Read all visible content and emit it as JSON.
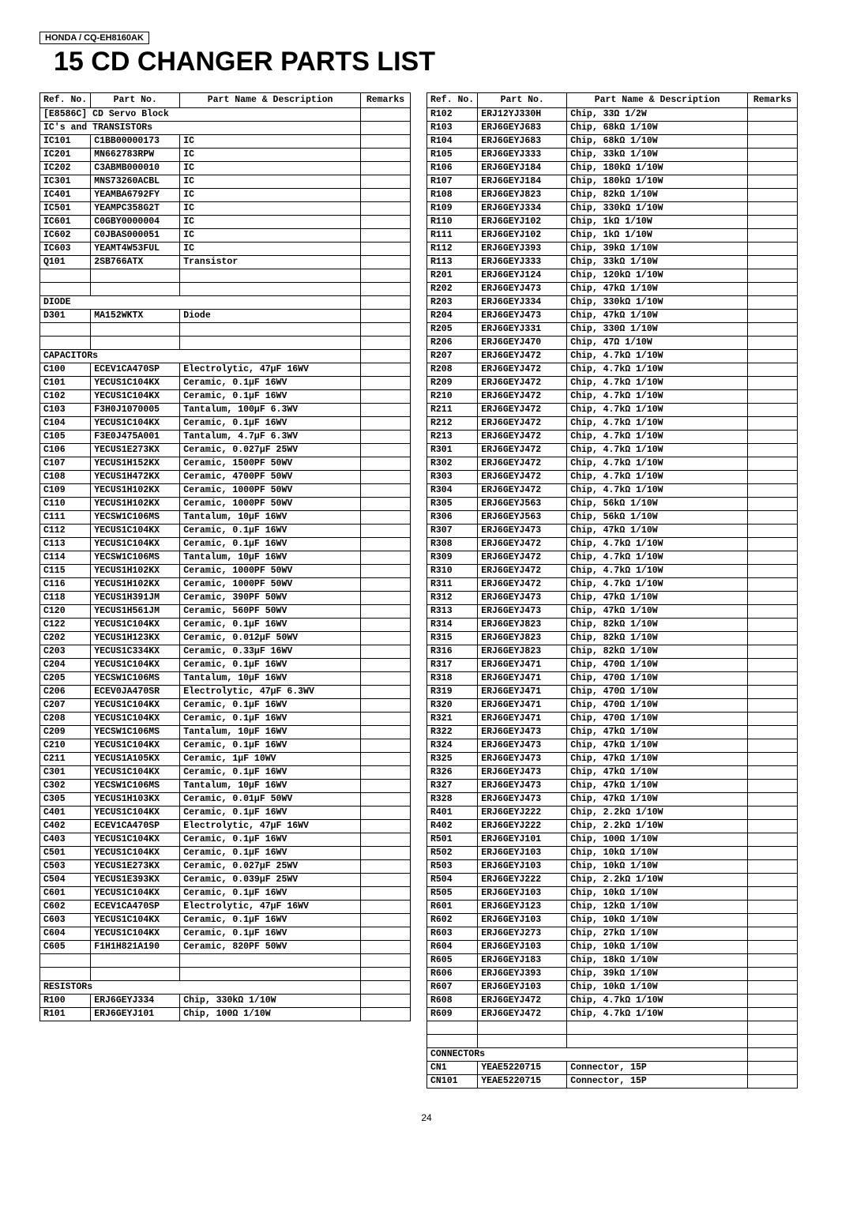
{
  "model": "HONDA / CQ-EH8160AK",
  "title": "15 CD CHANGER PARTS LIST",
  "page_number": "24",
  "headers": {
    "ref": "Ref. No.",
    "pn": "Part No.",
    "desc": "Part Name & Description",
    "rem": "Remarks"
  },
  "left_rows": [
    {
      "type": "section",
      "span": 3,
      "text": "[E8586C] CD Servo Block"
    },
    {
      "type": "section",
      "span": 3,
      "text": "IC's and TRANSISTORs"
    },
    {
      "ref": "IC101",
      "pn": "C1BB00000173",
      "desc": "IC"
    },
    {
      "ref": "IC201",
      "pn": "MN662783RPW",
      "desc": "IC"
    },
    {
      "ref": "IC202",
      "pn": "C3ABMB000010",
      "desc": "IC"
    },
    {
      "ref": "IC301",
      "pn": "MNS73260ACBL",
      "desc": "IC"
    },
    {
      "ref": "IC401",
      "pn": "YEAMBA6792FY",
      "desc": "IC"
    },
    {
      "ref": "IC501",
      "pn": "YEAMPC358G2T",
      "desc": "IC"
    },
    {
      "ref": "IC601",
      "pn": "C0GBY0000004",
      "desc": "IC"
    },
    {
      "ref": "IC602",
      "pn": "C0JBAS000051",
      "desc": "IC"
    },
    {
      "ref": "IC603",
      "pn": "YEAMT4W53FUL",
      "desc": "IC"
    },
    {
      "ref": "Q101",
      "pn": "2SB766ATX",
      "desc": "Transistor"
    },
    {
      "type": "blank"
    },
    {
      "type": "blank"
    },
    {
      "type": "section",
      "span": 3,
      "text": "DIODE"
    },
    {
      "ref": "D301",
      "pn": "MA152WKTX",
      "desc": "Diode"
    },
    {
      "type": "blank"
    },
    {
      "type": "blank"
    },
    {
      "type": "section",
      "span": 3,
      "text": "CAPACITORs"
    },
    {
      "ref": "C100",
      "pn": "ECEV1CA470SP",
      "desc": "Electrolytic, 47µF 16WV"
    },
    {
      "ref": "C101",
      "pn": "YECUS1C104KX",
      "desc": "Ceramic, 0.1µF 16WV"
    },
    {
      "ref": "C102",
      "pn": "YECUS1C104KX",
      "desc": "Ceramic, 0.1µF 16WV"
    },
    {
      "ref": "C103",
      "pn": "F3H0J1070005",
      "desc": "Tantalum, 100µF 6.3WV"
    },
    {
      "ref": "C104",
      "pn": "YECUS1C104KX",
      "desc": "Ceramic, 0.1µF 16WV"
    },
    {
      "ref": "C105",
      "pn": "F3E0J475A001",
      "desc": "Tantalum, 4.7µF 6.3WV"
    },
    {
      "ref": "C106",
      "pn": "YECUS1E273KX",
      "desc": "Ceramic, 0.027µF 25WV"
    },
    {
      "ref": "C107",
      "pn": "YECUS1H152KX",
      "desc": "Ceramic, 1500PF 50WV"
    },
    {
      "ref": "C108",
      "pn": "YECUS1H472KX",
      "desc": "Ceramic, 4700PF 50WV"
    },
    {
      "ref": "C109",
      "pn": "YECUS1H102KX",
      "desc": "Ceramic, 1000PF 50WV"
    },
    {
      "ref": "C110",
      "pn": "YECUS1H102KX",
      "desc": "Ceramic, 1000PF 50WV"
    },
    {
      "ref": "C111",
      "pn": "YECSW1C106MS",
      "desc": "Tantalum, 10µF 16WV"
    },
    {
      "ref": "C112",
      "pn": "YECUS1C104KX",
      "desc": "Ceramic, 0.1µF 16WV"
    },
    {
      "ref": "C113",
      "pn": "YECUS1C104KX",
      "desc": "Ceramic, 0.1µF 16WV"
    },
    {
      "ref": "C114",
      "pn": "YECSW1C106MS",
      "desc": "Tantalum, 10µF 16WV"
    },
    {
      "ref": "C115",
      "pn": "YECUS1H102KX",
      "desc": "Ceramic, 1000PF 50WV"
    },
    {
      "ref": "C116",
      "pn": "YECUS1H102KX",
      "desc": "Ceramic, 1000PF 50WV"
    },
    {
      "ref": "C118",
      "pn": "YECUS1H391JM",
      "desc": "Ceramic, 390PF 50WV"
    },
    {
      "ref": "C120",
      "pn": "YECUS1H561JM",
      "desc": "Ceramic, 560PF 50WV"
    },
    {
      "ref": "C122",
      "pn": "YECUS1C104KX",
      "desc": "Ceramic, 0.1µF 16WV"
    },
    {
      "ref": "C202",
      "pn": "YECUS1H123KX",
      "desc": "Ceramic, 0.012µF 50WV"
    },
    {
      "ref": "C203",
      "pn": "YECUS1C334KX",
      "desc": "Ceramic, 0.33µF 16WV"
    },
    {
      "ref": "C204",
      "pn": "YECUS1C104KX",
      "desc": "Ceramic, 0.1µF 16WV"
    },
    {
      "ref": "C205",
      "pn": "YECSW1C106MS",
      "desc": "Tantalum, 10µF 16WV"
    },
    {
      "ref": "C206",
      "pn": "ECEV0JA470SR",
      "desc": "Electrolytic, 47µF 6.3WV"
    },
    {
      "ref": "C207",
      "pn": "YECUS1C104KX",
      "desc": "Ceramic, 0.1µF 16WV"
    },
    {
      "ref": "C208",
      "pn": "YECUS1C104KX",
      "desc": "Ceramic, 0.1µF 16WV"
    },
    {
      "ref": "C209",
      "pn": "YECSW1C106MS",
      "desc": "Tantalum, 10µF 16WV"
    },
    {
      "ref": "C210",
      "pn": "YECUS1C104KX",
      "desc": "Ceramic, 0.1µF 16WV"
    },
    {
      "ref": "C211",
      "pn": "YECUS1A105KX",
      "desc": "Ceramic, 1µF 10WV"
    },
    {
      "ref": "C301",
      "pn": "YECUS1C104KX",
      "desc": "Ceramic, 0.1µF 16WV"
    },
    {
      "ref": "C302",
      "pn": "YECSW1C106MS",
      "desc": "Tantalum, 10µF 16WV"
    },
    {
      "ref": "C305",
      "pn": "YECUS1H103KX",
      "desc": "Ceramic, 0.01µF 50WV"
    },
    {
      "ref": "C401",
      "pn": "YECUS1C104KX",
      "desc": "Ceramic, 0.1µF 16WV"
    },
    {
      "ref": "C402",
      "pn": "ECEV1CA470SP",
      "desc": "Electrolytic, 47µF 16WV"
    },
    {
      "ref": "C403",
      "pn": "YECUS1C104KX",
      "desc": "Ceramic, 0.1µF 16WV"
    },
    {
      "ref": "C501",
      "pn": "YECUS1C104KX",
      "desc": "Ceramic, 0.1µF 16WV"
    },
    {
      "ref": "C503",
      "pn": "YECUS1E273KX",
      "desc": "Ceramic, 0.027µF 25WV"
    },
    {
      "ref": "C504",
      "pn": "YECUS1E393KX",
      "desc": "Ceramic, 0.039µF 25WV"
    },
    {
      "ref": "C601",
      "pn": "YECUS1C104KX",
      "desc": "Ceramic, 0.1µF 16WV"
    },
    {
      "ref": "C602",
      "pn": "ECEV1CA470SP",
      "desc": "Electrolytic, 47µF 16WV"
    },
    {
      "ref": "C603",
      "pn": "YECUS1C104KX",
      "desc": "Ceramic, 0.1µF 16WV"
    },
    {
      "ref": "C604",
      "pn": "YECUS1C104KX",
      "desc": "Ceramic, 0.1µF 16WV"
    },
    {
      "ref": "C605",
      "pn": "F1H1H821A190",
      "desc": "Ceramic, 820PF 50WV"
    },
    {
      "type": "blank"
    },
    {
      "type": "blank"
    },
    {
      "type": "section",
      "span": 3,
      "text": "RESISTORs"
    },
    {
      "ref": "R100",
      "pn": "ERJ6GEYJ334",
      "desc": "Chip, 330kΩ 1/10W"
    },
    {
      "ref": "R101",
      "pn": "ERJ6GEYJ101",
      "desc": "Chip, 100Ω 1/10W"
    }
  ],
  "right_rows": [
    {
      "ref": "R102",
      "pn": "ERJ12YJ330H",
      "desc": "Chip, 33Ω 1/2W"
    },
    {
      "ref": "R103",
      "pn": "ERJ6GEYJ683",
      "desc": "Chip, 68kΩ 1/10W"
    },
    {
      "ref": "R104",
      "pn": "ERJ6GEYJ683",
      "desc": "Chip, 68kΩ 1/10W"
    },
    {
      "ref": "R105",
      "pn": "ERJ6GEYJ333",
      "desc": "Chip, 33kΩ 1/10W"
    },
    {
      "ref": "R106",
      "pn": "ERJ6GEYJ184",
      "desc": "Chip, 180kΩ 1/10W"
    },
    {
      "ref": "R107",
      "pn": "ERJ6GEYJ184",
      "desc": "Chip, 180kΩ 1/10W"
    },
    {
      "ref": "R108",
      "pn": "ERJ6GEYJ823",
      "desc": "Chip, 82kΩ 1/10W"
    },
    {
      "ref": "R109",
      "pn": "ERJ6GEYJ334",
      "desc": "Chip, 330kΩ 1/10W"
    },
    {
      "ref": "R110",
      "pn": "ERJ6GEYJ102",
      "desc": "Chip, 1kΩ 1/10W"
    },
    {
      "ref": "R111",
      "pn": "ERJ6GEYJ102",
      "desc": "Chip, 1kΩ 1/10W"
    },
    {
      "ref": "R112",
      "pn": "ERJ6GEYJ393",
      "desc": "Chip, 39kΩ 1/10W"
    },
    {
      "ref": "R113",
      "pn": "ERJ6GEYJ333",
      "desc": "Chip, 33kΩ 1/10W"
    },
    {
      "ref": "R201",
      "pn": "ERJ6GEYJ124",
      "desc": "Chip, 120kΩ 1/10W"
    },
    {
      "ref": "R202",
      "pn": "ERJ6GEYJ473",
      "desc": "Chip, 47kΩ 1/10W"
    },
    {
      "ref": "R203",
      "pn": "ERJ6GEYJ334",
      "desc": "Chip, 330kΩ 1/10W"
    },
    {
      "ref": "R204",
      "pn": "ERJ6GEYJ473",
      "desc": "Chip, 47kΩ 1/10W"
    },
    {
      "ref": "R205",
      "pn": "ERJ6GEYJ331",
      "desc": "Chip, 330Ω 1/10W"
    },
    {
      "ref": "R206",
      "pn": "ERJ6GEYJ470",
      "desc": "Chip, 47Ω 1/10W"
    },
    {
      "ref": "R207",
      "pn": "ERJ6GEYJ472",
      "desc": "Chip, 4.7kΩ 1/10W"
    },
    {
      "ref": "R208",
      "pn": "ERJ6GEYJ472",
      "desc": "Chip, 4.7kΩ 1/10W"
    },
    {
      "ref": "R209",
      "pn": "ERJ6GEYJ472",
      "desc": "Chip, 4.7kΩ 1/10W"
    },
    {
      "ref": "R210",
      "pn": "ERJ6GEYJ472",
      "desc": "Chip, 4.7kΩ 1/10W"
    },
    {
      "ref": "R211",
      "pn": "ERJ6GEYJ472",
      "desc": "Chip, 4.7kΩ 1/10W"
    },
    {
      "ref": "R212",
      "pn": "ERJ6GEYJ472",
      "desc": "Chip, 4.7kΩ 1/10W"
    },
    {
      "ref": "R213",
      "pn": "ERJ6GEYJ472",
      "desc": "Chip, 4.7kΩ 1/10W"
    },
    {
      "ref": "R301",
      "pn": "ERJ6GEYJ472",
      "desc": "Chip, 4.7kΩ 1/10W"
    },
    {
      "ref": "R302",
      "pn": "ERJ6GEYJ472",
      "desc": "Chip, 4.7kΩ 1/10W"
    },
    {
      "ref": "R303",
      "pn": "ERJ6GEYJ472",
      "desc": "Chip, 4.7kΩ 1/10W"
    },
    {
      "ref": "R304",
      "pn": "ERJ6GEYJ472",
      "desc": "Chip, 4.7kΩ 1/10W"
    },
    {
      "ref": "R305",
      "pn": "ERJ6GEYJ563",
      "desc": "Chip, 56kΩ 1/10W"
    },
    {
      "ref": "R306",
      "pn": "ERJ6GEYJ563",
      "desc": "Chip, 56kΩ 1/10W"
    },
    {
      "ref": "R307",
      "pn": "ERJ6GEYJ473",
      "desc": "Chip, 47kΩ 1/10W"
    },
    {
      "ref": "R308",
      "pn": "ERJ6GEYJ472",
      "desc": "Chip, 4.7kΩ 1/10W"
    },
    {
      "ref": "R309",
      "pn": "ERJ6GEYJ472",
      "desc": "Chip, 4.7kΩ 1/10W"
    },
    {
      "ref": "R310",
      "pn": "ERJ6GEYJ472",
      "desc": "Chip, 4.7kΩ 1/10W"
    },
    {
      "ref": "R311",
      "pn": "ERJ6GEYJ472",
      "desc": "Chip, 4.7kΩ 1/10W"
    },
    {
      "ref": "R312",
      "pn": "ERJ6GEYJ473",
      "desc": "Chip, 47kΩ 1/10W"
    },
    {
      "ref": "R313",
      "pn": "ERJ6GEYJ473",
      "desc": "Chip, 47kΩ 1/10W"
    },
    {
      "ref": "R314",
      "pn": "ERJ6GEYJ823",
      "desc": "Chip, 82kΩ 1/10W"
    },
    {
      "ref": "R315",
      "pn": "ERJ6GEYJ823",
      "desc": "Chip, 82kΩ 1/10W"
    },
    {
      "ref": "R316",
      "pn": "ERJ6GEYJ823",
      "desc": "Chip, 82kΩ 1/10W"
    },
    {
      "ref": "R317",
      "pn": "ERJ6GEYJ471",
      "desc": "Chip, 470Ω 1/10W"
    },
    {
      "ref": "R318",
      "pn": "ERJ6GEYJ471",
      "desc": "Chip, 470Ω 1/10W"
    },
    {
      "ref": "R319",
      "pn": "ERJ6GEYJ471",
      "desc": "Chip, 470Ω 1/10W"
    },
    {
      "ref": "R320",
      "pn": "ERJ6GEYJ471",
      "desc": "Chip, 470Ω 1/10W"
    },
    {
      "ref": "R321",
      "pn": "ERJ6GEYJ471",
      "desc": "Chip, 470Ω 1/10W"
    },
    {
      "ref": "R322",
      "pn": "ERJ6GEYJ473",
      "desc": "Chip, 47kΩ 1/10W"
    },
    {
      "ref": "R324",
      "pn": "ERJ6GEYJ473",
      "desc": "Chip, 47kΩ 1/10W"
    },
    {
      "ref": "R325",
      "pn": "ERJ6GEYJ473",
      "desc": "Chip, 47kΩ 1/10W"
    },
    {
      "ref": "R326",
      "pn": "ERJ6GEYJ473",
      "desc": "Chip, 47kΩ 1/10W"
    },
    {
      "ref": "R327",
      "pn": "ERJ6GEYJ473",
      "desc": "Chip, 47kΩ 1/10W"
    },
    {
      "ref": "R328",
      "pn": "ERJ6GEYJ473",
      "desc": "Chip, 47kΩ 1/10W"
    },
    {
      "ref": "R401",
      "pn": "ERJ6GEYJ222",
      "desc": "Chip, 2.2kΩ 1/10W"
    },
    {
      "ref": "R402",
      "pn": "ERJ6GEYJ222",
      "desc": "Chip, 2.2kΩ 1/10W"
    },
    {
      "ref": "R501",
      "pn": "ERJ6GEYJ101",
      "desc": "Chip, 100Ω 1/10W"
    },
    {
      "ref": "R502",
      "pn": "ERJ6GEYJ103",
      "desc": "Chip, 10kΩ 1/10W"
    },
    {
      "ref": "R503",
      "pn": "ERJ6GEYJ103",
      "desc": "Chip, 10kΩ 1/10W"
    },
    {
      "ref": "R504",
      "pn": "ERJ6GEYJ222",
      "desc": "Chip, 2.2kΩ 1/10W"
    },
    {
      "ref": "R505",
      "pn": "ERJ6GEYJ103",
      "desc": "Chip, 10kΩ 1/10W"
    },
    {
      "ref": "R601",
      "pn": "ERJ6GEYJ123",
      "desc": "Chip, 12kΩ 1/10W"
    },
    {
      "ref": "R602",
      "pn": "ERJ6GEYJ103",
      "desc": "Chip, 10kΩ 1/10W"
    },
    {
      "ref": "R603",
      "pn": "ERJ6GEYJ273",
      "desc": "Chip, 27kΩ 1/10W"
    },
    {
      "ref": "R604",
      "pn": "ERJ6GEYJ103",
      "desc": "Chip, 10kΩ 1/10W"
    },
    {
      "ref": "R605",
      "pn": "ERJ6GEYJ183",
      "desc": "Chip, 18kΩ 1/10W"
    },
    {
      "ref": "R606",
      "pn": "ERJ6GEYJ393",
      "desc": "Chip, 39kΩ 1/10W"
    },
    {
      "ref": "R607",
      "pn": "ERJ6GEYJ103",
      "desc": "Chip, 10kΩ 1/10W"
    },
    {
      "ref": "R608",
      "pn": "ERJ6GEYJ472",
      "desc": "Chip, 4.7kΩ 1/10W"
    },
    {
      "ref": "R609",
      "pn": "ERJ6GEYJ472",
      "desc": "Chip, 4.7kΩ 1/10W"
    },
    {
      "type": "blank"
    },
    {
      "type": "blank"
    },
    {
      "type": "section",
      "span": 3,
      "text": "CONNECTORs"
    },
    {
      "ref": "CN1",
      "pn": "YEAE5220715",
      "desc": "Connector, 15P"
    },
    {
      "ref": "CN101",
      "pn": "YEAE5220715",
      "desc": "Connector, 15P"
    }
  ]
}
